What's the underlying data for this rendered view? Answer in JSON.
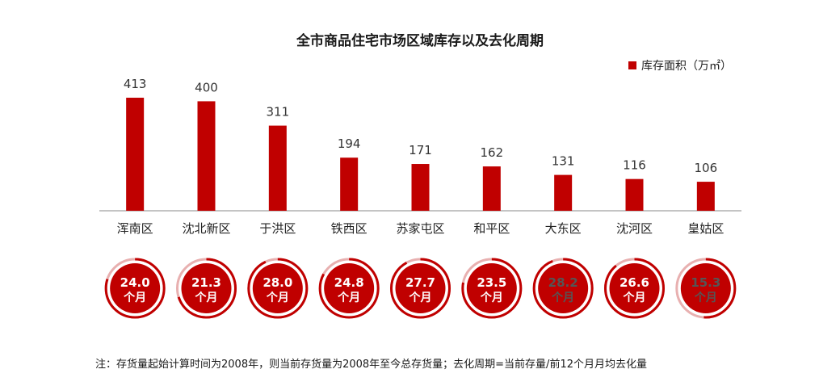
{
  "colors": {
    "bar": "#c00000",
    "ring_bg": "#f2d0d0",
    "ring_track": "#e8b0b0",
    "text_light": "#ffffff",
    "text_dark": "#555555"
  },
  "chart_data": {
    "type": "bar",
    "title": "全市商品住宅市场区域库存以及去化周期",
    "legend": [
      "库存面积（万㎡）"
    ],
    "legend_position": "top-right",
    "categories": [
      "浑南区",
      "沈北新区",
      "于洪区",
      "铁西区",
      "苏家屯区",
      "和平区",
      "大东区",
      "沈河区",
      "皇姑区"
    ],
    "series": [
      {
        "name": "库存面积（万㎡）",
        "values": [
          413,
          400,
          311,
          194,
          171,
          162,
          131,
          116,
          106
        ]
      }
    ],
    "value_labels": [
      "413",
      "400",
      "311",
      "194",
      "171",
      "162",
      "131",
      "116",
      "106"
    ],
    "ylim": [
      0,
      450
    ],
    "grid": false,
    "cycle": {
      "values": [
        "24.0",
        "21.3",
        "28.0",
        "24.8",
        "27.7",
        "23.5",
        "28.2",
        "26.6",
        "15.3"
      ],
      "unit": "个月",
      "fill_fraction": [
        0.8,
        0.7,
        0.93,
        0.83,
        0.92,
        0.78,
        0.94,
        0.89,
        0.51
      ]
    }
  },
  "note": "注：存货量起始计算时间为2008年，则当前存货量为2008年至今总存货量；去化周期=当前存量/前12个月月均去化量"
}
